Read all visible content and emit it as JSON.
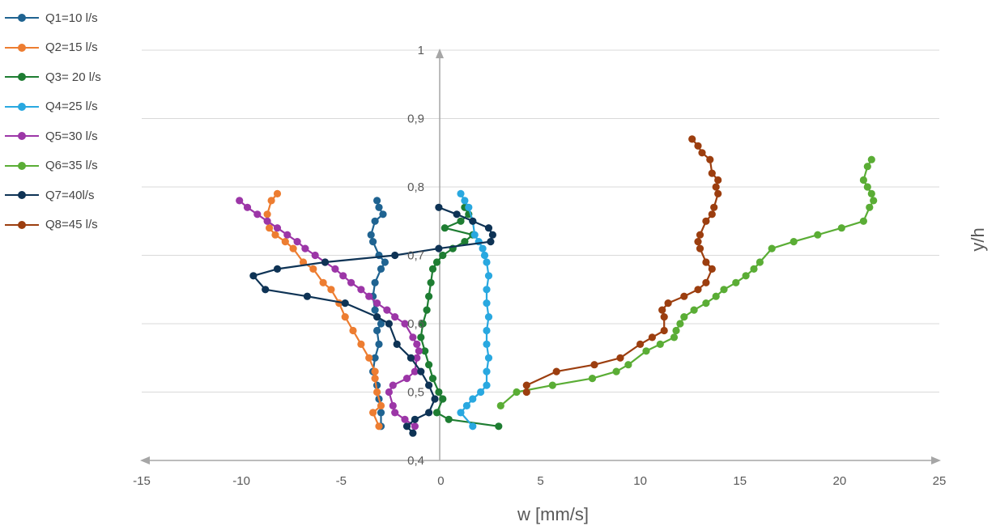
{
  "chart_data": {
    "type": "line",
    "xlabel": "w [mm/s]",
    "ylabel": "y/h",
    "xlim": [
      -15,
      25
    ],
    "ylim": [
      0.4,
      1
    ],
    "x_ticks": [
      "-15",
      "-10",
      "-5",
      "0",
      "5",
      "10",
      "15",
      "20",
      "25"
    ],
    "y_ticks": [
      "0,4",
      "0,5",
      "0,6",
      "0,7",
      "0,8",
      "0,9",
      "1"
    ],
    "grid": "horizontal",
    "legend_position": "top-left",
    "series": [
      {
        "name": "Q1=10 l/s",
        "color": "#1f6391",
        "points": [
          [
            -3,
            0.45
          ],
          [
            -3,
            0.47
          ],
          [
            -3.1,
            0.49
          ],
          [
            -3.2,
            0.51
          ],
          [
            -3.4,
            0.53
          ],
          [
            -3.3,
            0.55
          ],
          [
            -3.1,
            0.57
          ],
          [
            -3.2,
            0.59
          ],
          [
            -3.0,
            0.6
          ],
          [
            -3.3,
            0.62
          ],
          [
            -3.4,
            0.64
          ],
          [
            -3.3,
            0.66
          ],
          [
            -3.0,
            0.68
          ],
          [
            -2.8,
            0.69
          ],
          [
            -3.1,
            0.7
          ],
          [
            -3.4,
            0.72
          ],
          [
            -3.5,
            0.73
          ],
          [
            -3.3,
            0.75
          ],
          [
            -2.9,
            0.76
          ],
          [
            -3.1,
            0.77
          ],
          [
            -3.2,
            0.78
          ]
        ]
      },
      {
        "name": "Q2=15 l/s",
        "color": "#ed7d31",
        "points": [
          [
            -3.1,
            0.45
          ],
          [
            -3.4,
            0.47
          ],
          [
            -3.0,
            0.48
          ],
          [
            -3.2,
            0.5
          ],
          [
            -3.3,
            0.52
          ],
          [
            -3.3,
            0.53
          ],
          [
            -3.6,
            0.55
          ],
          [
            -4.0,
            0.57
          ],
          [
            -4.4,
            0.59
          ],
          [
            -4.8,
            0.61
          ],
          [
            -5.1,
            0.63
          ],
          [
            -5.5,
            0.65
          ],
          [
            -5.9,
            0.66
          ],
          [
            -6.4,
            0.68
          ],
          [
            -6.9,
            0.69
          ],
          [
            -7.4,
            0.71
          ],
          [
            -7.8,
            0.72
          ],
          [
            -8.3,
            0.73
          ],
          [
            -8.6,
            0.74
          ],
          [
            -8.7,
            0.76
          ],
          [
            -8.5,
            0.78
          ],
          [
            -8.2,
            0.79
          ]
        ]
      },
      {
        "name": "Q3= 20 l/s",
        "color": "#1e7d32",
        "points": [
          [
            2.9,
            0.45
          ],
          [
            0.4,
            0.46
          ],
          [
            -0.2,
            0.47
          ],
          [
            0.1,
            0.49
          ],
          [
            -0.1,
            0.5
          ],
          [
            -0.4,
            0.52
          ],
          [
            -0.6,
            0.54
          ],
          [
            -0.8,
            0.56
          ],
          [
            -1.0,
            0.58
          ],
          [
            -0.9,
            0.6
          ],
          [
            -0.7,
            0.62
          ],
          [
            -0.6,
            0.64
          ],
          [
            -0.5,
            0.66
          ],
          [
            -0.4,
            0.68
          ],
          [
            -0.2,
            0.69
          ],
          [
            0.1,
            0.7
          ],
          [
            0.6,
            0.71
          ],
          [
            1.2,
            0.72
          ],
          [
            1.6,
            0.73
          ],
          [
            0.2,
            0.74
          ],
          [
            1.0,
            0.75
          ],
          [
            1.4,
            0.76
          ],
          [
            1.2,
            0.77
          ]
        ]
      },
      {
        "name": "Q4=25 l/s",
        "color": "#29a8e0",
        "points": [
          [
            1.6,
            0.45
          ],
          [
            1.0,
            0.47
          ],
          [
            1.3,
            0.48
          ],
          [
            1.6,
            0.49
          ],
          [
            2.0,
            0.5
          ],
          [
            2.3,
            0.51
          ],
          [
            2.3,
            0.53
          ],
          [
            2.4,
            0.55
          ],
          [
            2.3,
            0.57
          ],
          [
            2.3,
            0.59
          ],
          [
            2.4,
            0.61
          ],
          [
            2.3,
            0.63
          ],
          [
            2.3,
            0.65
          ],
          [
            2.4,
            0.67
          ],
          [
            2.3,
            0.69
          ],
          [
            2.2,
            0.7
          ],
          [
            2.1,
            0.71
          ],
          [
            1.9,
            0.72
          ],
          [
            1.7,
            0.73
          ],
          [
            1.6,
            0.75
          ],
          [
            1.4,
            0.77
          ],
          [
            1.2,
            0.78
          ],
          [
            1.0,
            0.79
          ]
        ]
      },
      {
        "name": "Q5=30 l/s",
        "color": "#9c36a7",
        "points": [
          [
            -1.3,
            0.45
          ],
          [
            -1.8,
            0.46
          ],
          [
            -2.3,
            0.47
          ],
          [
            -2.4,
            0.48
          ],
          [
            -2.6,
            0.5
          ],
          [
            -2.4,
            0.51
          ],
          [
            -1.7,
            0.52
          ],
          [
            -1.3,
            0.53
          ],
          [
            -1.2,
            0.55
          ],
          [
            -1.1,
            0.56
          ],
          [
            -1.2,
            0.57
          ],
          [
            -1.4,
            0.58
          ],
          [
            -1.8,
            0.6
          ],
          [
            -2.3,
            0.61
          ],
          [
            -2.7,
            0.62
          ],
          [
            -3.2,
            0.63
          ],
          [
            -3.6,
            0.64
          ],
          [
            -4.0,
            0.65
          ],
          [
            -4.5,
            0.66
          ],
          [
            -4.9,
            0.67
          ],
          [
            -5.3,
            0.68
          ],
          [
            -5.8,
            0.69
          ],
          [
            -6.3,
            0.7
          ],
          [
            -6.8,
            0.71
          ],
          [
            -7.2,
            0.72
          ],
          [
            -7.7,
            0.73
          ],
          [
            -8.2,
            0.74
          ],
          [
            -8.7,
            0.75
          ],
          [
            -9.2,
            0.76
          ],
          [
            -9.7,
            0.77
          ],
          [
            -10.1,
            0.78
          ]
        ]
      },
      {
        "name": "Q6=35 l/s",
        "color": "#5aad35",
        "points": [
          [
            3.0,
            0.48
          ],
          [
            3.8,
            0.5
          ],
          [
            5.6,
            0.51
          ],
          [
            7.6,
            0.52
          ],
          [
            8.8,
            0.53
          ],
          [
            9.4,
            0.54
          ],
          [
            10.3,
            0.56
          ],
          [
            11.0,
            0.57
          ],
          [
            11.7,
            0.58
          ],
          [
            11.8,
            0.59
          ],
          [
            12.0,
            0.6
          ],
          [
            12.2,
            0.61
          ],
          [
            12.7,
            0.62
          ],
          [
            13.3,
            0.63
          ],
          [
            13.8,
            0.64
          ],
          [
            14.2,
            0.65
          ],
          [
            14.8,
            0.66
          ],
          [
            15.3,
            0.67
          ],
          [
            15.7,
            0.68
          ],
          [
            16.0,
            0.69
          ],
          [
            16.6,
            0.71
          ],
          [
            17.7,
            0.72
          ],
          [
            18.9,
            0.73
          ],
          [
            20.1,
            0.74
          ],
          [
            21.2,
            0.75
          ],
          [
            21.5,
            0.77
          ],
          [
            21.7,
            0.78
          ],
          [
            21.6,
            0.79
          ],
          [
            21.4,
            0.8
          ],
          [
            21.2,
            0.81
          ],
          [
            21.4,
            0.83
          ],
          [
            21.6,
            0.84
          ]
        ]
      },
      {
        "name": "Q7=40l/s",
        "color": "#0e3355",
        "points": [
          [
            -1.4,
            0.44
          ],
          [
            -1.7,
            0.45
          ],
          [
            -1.3,
            0.46
          ],
          [
            -0.6,
            0.47
          ],
          [
            -0.3,
            0.49
          ],
          [
            -0.6,
            0.51
          ],
          [
            -1.0,
            0.53
          ],
          [
            -1.5,
            0.55
          ],
          [
            -2.2,
            0.57
          ],
          [
            -2.6,
            0.6
          ],
          [
            -3.2,
            0.61
          ],
          [
            -4.8,
            0.63
          ],
          [
            -6.7,
            0.64
          ],
          [
            -8.8,
            0.65
          ],
          [
            -9.4,
            0.67
          ],
          [
            -8.2,
            0.68
          ],
          [
            -5.8,
            0.69
          ],
          [
            -2.3,
            0.7
          ],
          [
            -0.1,
            0.71
          ],
          [
            2.5,
            0.72
          ],
          [
            2.6,
            0.73
          ],
          [
            2.4,
            0.74
          ],
          [
            1.6,
            0.75
          ],
          [
            0.8,
            0.76
          ],
          [
            -0.1,
            0.77
          ]
        ]
      },
      {
        "name": "Q8=45 l/s",
        "color": "#9c3e0f",
        "points": [
          [
            4.3,
            0.5
          ],
          [
            4.3,
            0.51
          ],
          [
            5.8,
            0.53
          ],
          [
            7.7,
            0.54
          ],
          [
            9.0,
            0.55
          ],
          [
            10.0,
            0.57
          ],
          [
            10.6,
            0.58
          ],
          [
            11.2,
            0.59
          ],
          [
            11.2,
            0.61
          ],
          [
            11.1,
            0.62
          ],
          [
            11.4,
            0.63
          ],
          [
            12.2,
            0.64
          ],
          [
            12.9,
            0.65
          ],
          [
            13.3,
            0.66
          ],
          [
            13.6,
            0.68
          ],
          [
            13.3,
            0.69
          ],
          [
            13.0,
            0.71
          ],
          [
            12.9,
            0.72
          ],
          [
            13.0,
            0.73
          ],
          [
            13.3,
            0.75
          ],
          [
            13.6,
            0.76
          ],
          [
            13.7,
            0.77
          ],
          [
            13.9,
            0.79
          ],
          [
            13.8,
            0.8
          ],
          [
            13.9,
            0.81
          ],
          [
            13.6,
            0.82
          ],
          [
            13.5,
            0.84
          ],
          [
            13.1,
            0.85
          ],
          [
            12.9,
            0.86
          ],
          [
            12.6,
            0.87
          ]
        ]
      }
    ]
  }
}
